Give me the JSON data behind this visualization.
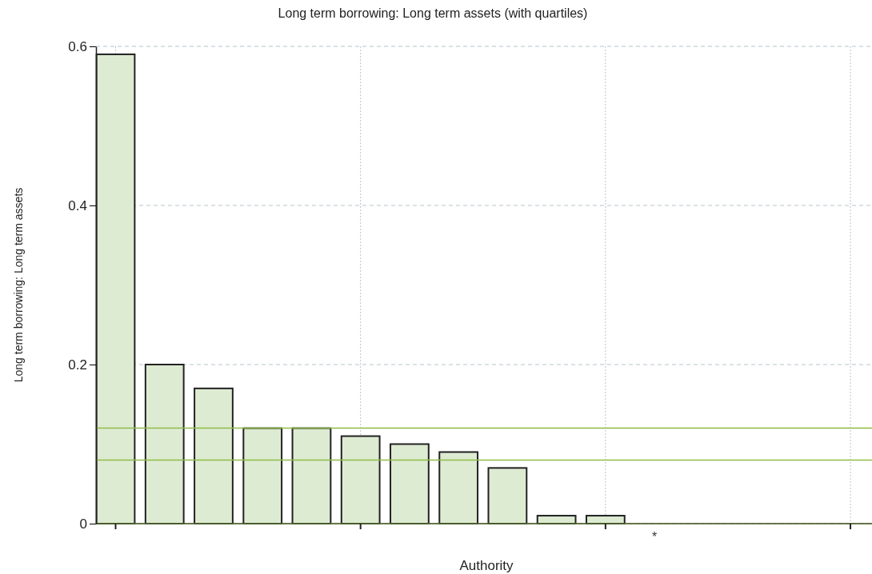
{
  "chart_data": {
    "type": "bar",
    "title": "Long term borrowing: Long term assets (with quartiles)",
    "xlabel": "Authority",
    "ylabel": "Long term borrowing: Long term assets",
    "categories": [
      null,
      null,
      null,
      null,
      null,
      null,
      null,
      null,
      null,
      null,
      null,
      "*",
      null,
      null,
      null,
      null
    ],
    "values": [
      0.59,
      0.2,
      0.17,
      0.12,
      0.12,
      0.11,
      0.1,
      0.09,
      0.07,
      0.01,
      0.01,
      0,
      0,
      0,
      0,
      0
    ],
    "color": "#deebd3",
    "ylim": [
      0,
      0.6
    ],
    "yticks": [
      0,
      0.2,
      0.4,
      0.6
    ],
    "grid": true,
    "ref_lines": [
      {
        "axis": "y",
        "value": 0.12,
        "color": "#8fbc45"
      },
      {
        "axis": "y",
        "value": 0.08,
        "color": "#8fbc45"
      },
      {
        "axis": "y",
        "value": 0,
        "color": "#8fbc45"
      }
    ]
  }
}
